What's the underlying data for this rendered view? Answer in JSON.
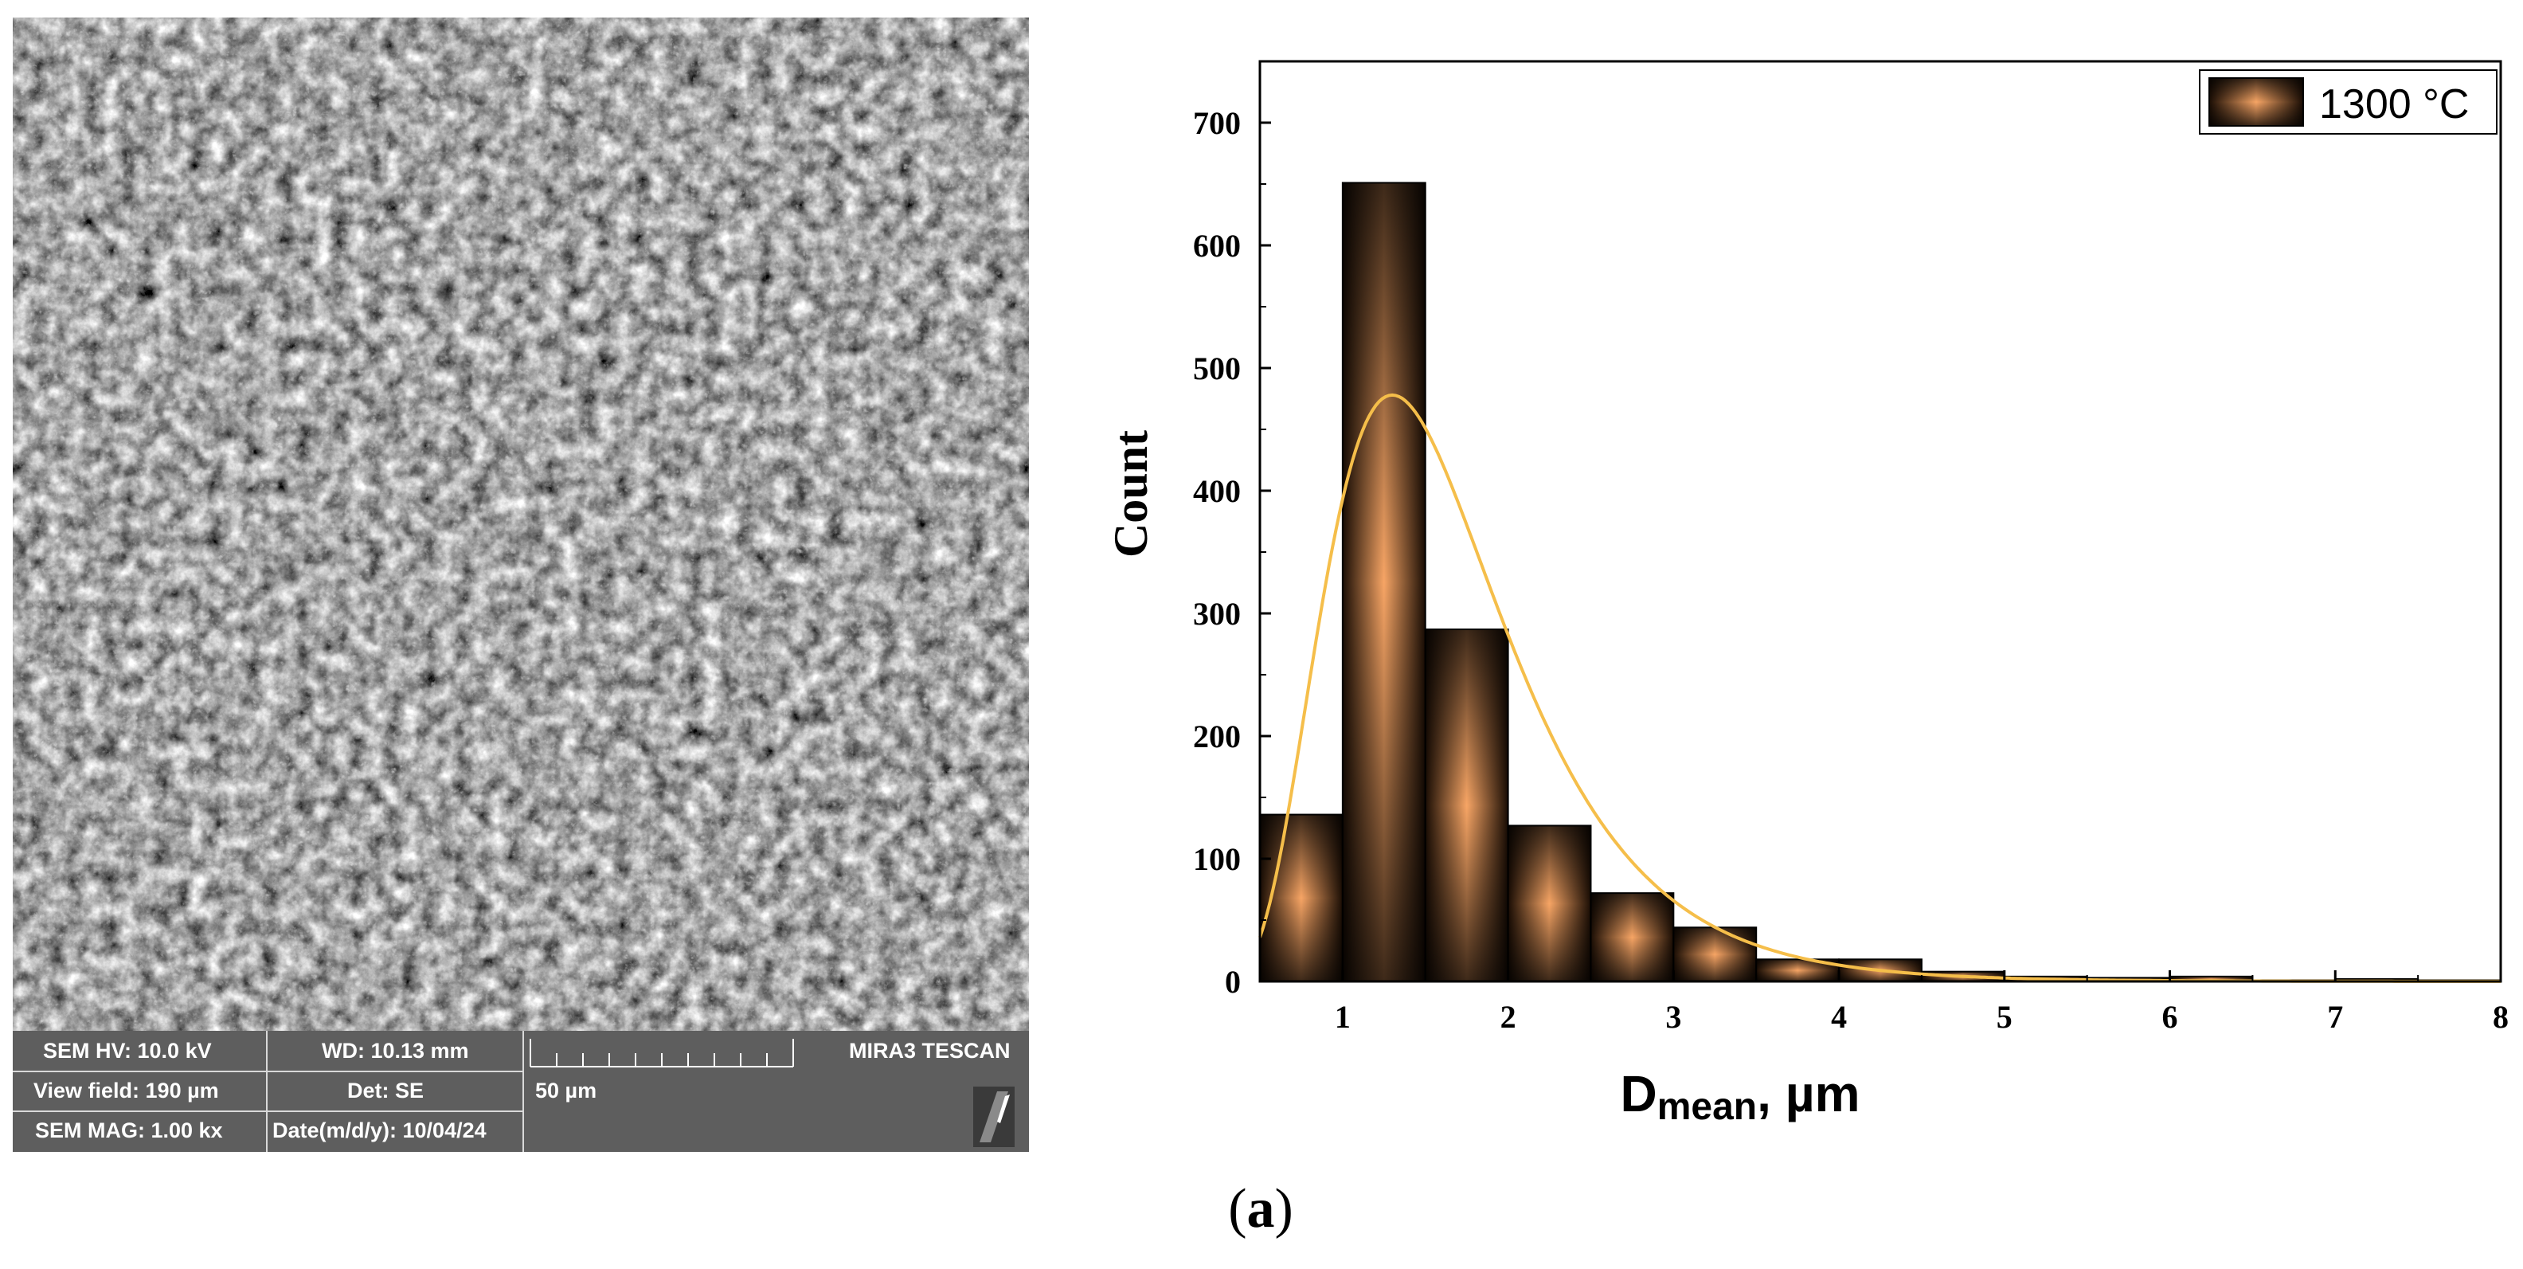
{
  "sem_panel": {
    "hv": "SEM HV: 10.0 kV",
    "wd": "WD: 10.13 mm",
    "view_field": "View field: 190 µm",
    "det": "Det: SE",
    "mag": "SEM MAG: 1.00 kx",
    "date": "Date(m/d/y): 10/04/24",
    "scale_label": "50 µm",
    "instrument": "MIRA3 TESCAN"
  },
  "panel_label": {
    "open": "(",
    "letter": "a",
    "close": ")"
  },
  "colors": {
    "bar_dark": "#1a0d04",
    "bar_light": "#f7a565",
    "fit_curve": "#f5be4a"
  },
  "chart_data": {
    "type": "bar",
    "subtype": "histogram",
    "xlabel_main": "D",
    "xlabel_sub": "mean",
    "xlabel_unit": ", µm",
    "ylabel": "Count",
    "xlim": [
      0.5,
      8
    ],
    "ylim": [
      0,
      750
    ],
    "xticks": [
      1,
      2,
      3,
      4,
      5,
      6,
      7,
      8
    ],
    "yticks": [
      0,
      100,
      200,
      300,
      400,
      500,
      600,
      700
    ],
    "bins": [
      {
        "x0": 0.5,
        "x1": 1.0,
        "count": 136
      },
      {
        "x0": 1.0,
        "x1": 1.5,
        "count": 651
      },
      {
        "x0": 1.5,
        "x1": 2.0,
        "count": 287
      },
      {
        "x0": 2.0,
        "x1": 2.5,
        "count": 127
      },
      {
        "x0": 2.5,
        "x1": 3.0,
        "count": 72
      },
      {
        "x0": 3.0,
        "x1": 3.5,
        "count": 44
      },
      {
        "x0": 3.5,
        "x1": 4.0,
        "count": 18
      },
      {
        "x0": 4.0,
        "x1": 4.5,
        "count": 18
      },
      {
        "x0": 4.5,
        "x1": 5.0,
        "count": 8
      },
      {
        "x0": 5.0,
        "x1": 5.5,
        "count": 4
      },
      {
        "x0": 5.5,
        "x1": 6.0,
        "count": 3
      },
      {
        "x0": 6.0,
        "x1": 6.5,
        "count": 4
      },
      {
        "x0": 6.5,
        "x1": 7.0,
        "count": 1
      },
      {
        "x0": 7.0,
        "x1": 7.5,
        "count": 2
      },
      {
        "x0": 7.5,
        "x1": 8.0,
        "count": 1
      }
    ],
    "fit_curve": {
      "type": "lognormal",
      "peak_x": 1.3,
      "peak_y": 478
    },
    "legend": {
      "label": "1300 °C",
      "position": "top-right"
    },
    "grid": false
  }
}
